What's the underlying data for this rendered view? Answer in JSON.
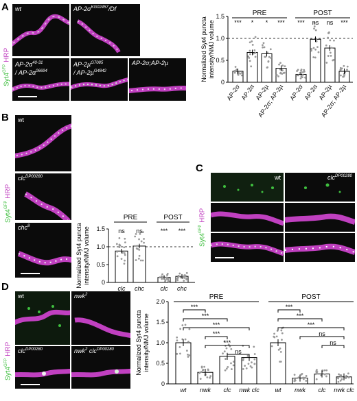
{
  "panels": {
    "A": {
      "label": "A",
      "images": [
        "wt",
        "AP-2σ",
        "KG02457",
        "/Df",
        "AP-2α",
        "40-31",
        "/ AP-2α",
        "06694",
        "AP-2µ",
        "G7085",
        "/ AP-2µ",
        "G4842",
        "AP-2σ;AP-2µ"
      ],
      "side_label": [
        "Syt4",
        "GFP",
        " HRP"
      ]
    },
    "B": {
      "label": "B",
      "images": [
        "wt",
        "clc",
        "DP00280",
        "chc",
        "8"
      ],
      "side_label": [
        "Syt4",
        "GFP",
        " HRP"
      ]
    },
    "C": {
      "label": "C",
      "images": [
        "wt",
        "clc",
        "DP00280"
      ],
      "side_label": [
        "Syt4",
        "GFP",
        " HRP"
      ]
    },
    "D": {
      "label": "D",
      "images": [
        "wt",
        "nwk",
        "2",
        "clc",
        "DP00280",
        "nwk",
        "2",
        " clc",
        "DP00280"
      ],
      "side_label": [
        "Syt4",
        "GFP",
        " HRP"
      ]
    }
  },
  "colors": {
    "green": "#3fbf3f",
    "magenta": "#c040c0",
    "bar_fill": "#ffffff",
    "dot": "#9a9a9a",
    "stroke": "#000000"
  },
  "chart_data": [
    {
      "type": "bar",
      "id": "A",
      "ylabel": "Normalized Syt4 puncta intensity/NMJ volume",
      "ylim": [
        0,
        1.5
      ],
      "yticks": [
        "0",
        "0.5",
        "1.0",
        "1.5"
      ],
      "reference_line": 1.0,
      "groups": [
        {
          "name": "PRE",
          "categories": [
            "AP-2σ",
            "AP-2α",
            "AP-2µ",
            "AP-2σ; AP-2µ"
          ],
          "values": [
            0.25,
            0.68,
            0.65,
            0.32
          ],
          "sig": [
            "***",
            "*",
            "*",
            "***"
          ]
        },
        {
          "name": "POST",
          "categories": [
            "AP-2σ",
            "AP-2α",
            "AP-2µ",
            "AP-2σ; AP-2µ"
          ],
          "values": [
            0.18,
            0.98,
            0.78,
            0.25
          ],
          "sig": [
            "***",
            "ns",
            "ns",
            "***"
          ]
        }
      ]
    },
    {
      "type": "bar",
      "id": "B",
      "ylabel": "Normalized Syt4 puncta intensity/NMJ volume",
      "ylim": [
        0,
        1.5
      ],
      "yticks": [
        "0",
        "0.5",
        "1.0",
        "1.5"
      ],
      "reference_line": 1.0,
      "groups": [
        {
          "name": "PRE",
          "categories": [
            "clc",
            "chc"
          ],
          "values": [
            0.88,
            1.02
          ],
          "sig": [
            "ns",
            "ns"
          ]
        },
        {
          "name": "POST",
          "categories": [
            "clc",
            "chc"
          ],
          "values": [
            0.14,
            0.17
          ],
          "sig": [
            "***",
            "***"
          ]
        }
      ]
    },
    {
      "type": "bar",
      "id": "D",
      "ylabel": "Normalized Syt4 puncta intensity/NMJ volume",
      "ylim": [
        0,
        2.0
      ],
      "yticks": [
        "0",
        "0.5",
        "1.0",
        "1.5",
        "2.0"
      ],
      "groups": [
        {
          "name": "PRE",
          "categories": [
            "wt",
            "nwk",
            "clc",
            "nwk clc"
          ],
          "values": [
            1.0,
            0.28,
            0.67,
            0.64
          ]
        },
        {
          "name": "POST",
          "categories": [
            "wt",
            "nwk",
            "clc",
            "nwk clc"
          ],
          "values": [
            1.0,
            0.14,
            0.24,
            0.17
          ]
        }
      ],
      "brackets": [
        {
          "group": "PRE",
          "from": 0,
          "to": 1,
          "label": "***"
        },
        {
          "group": "PRE",
          "from": 0,
          "to": 2,
          "label": "***"
        },
        {
          "group": "PRE",
          "from": 0,
          "to": 3,
          "label": "***"
        },
        {
          "group": "PRE",
          "from": 1,
          "to": 2,
          "label": "***"
        },
        {
          "group": "PRE",
          "from": 1,
          "to": 3,
          "label": "***"
        },
        {
          "group": "PRE",
          "from": 2,
          "to": 3,
          "label": "ns"
        },
        {
          "group": "POST",
          "from": 0,
          "to": 1,
          "label": "***"
        },
        {
          "group": "POST",
          "from": 0,
          "to": 2,
          "label": "***"
        },
        {
          "group": "POST",
          "from": 0,
          "to": 3,
          "label": "***"
        },
        {
          "group": "POST",
          "from": 1,
          "to": 3,
          "label": "ns"
        },
        {
          "group": "POST",
          "from": 2,
          "to": 3,
          "label": "ns"
        }
      ]
    }
  ]
}
